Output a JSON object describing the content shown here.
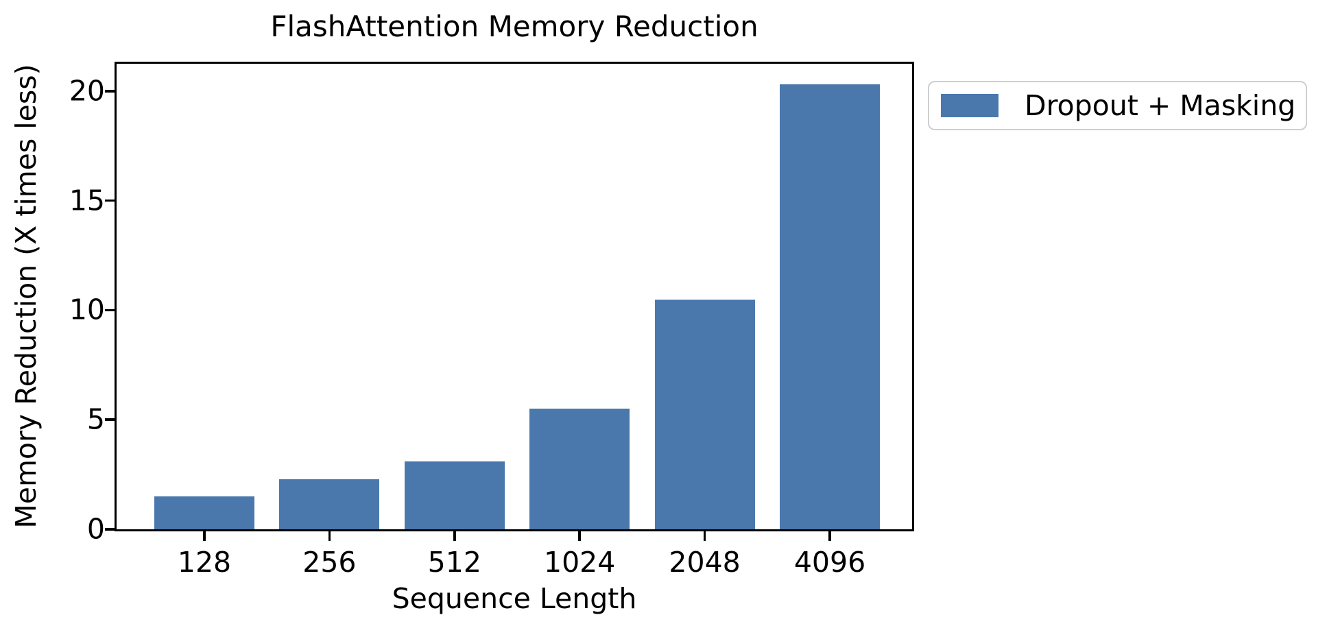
{
  "chart_data": {
    "type": "bar",
    "title": "FlashAttention Memory Reduction",
    "xlabel": "Sequence Length",
    "ylabel": "Memory Reduction (X times less)",
    "categories": [
      "128",
      "256",
      "512",
      "1024",
      "2048",
      "4096"
    ],
    "values": [
      1.5,
      2.3,
      3.1,
      5.5,
      10.5,
      20.3
    ],
    "series": [
      {
        "name": "Dropout + Masking",
        "values": [
          1.5,
          2.3,
          3.1,
          5.5,
          10.5,
          20.3
        ]
      }
    ],
    "yticks": [
      0,
      5,
      10,
      15,
      20
    ],
    "ylim": [
      0,
      21.25
    ],
    "grid": false,
    "legend_position": "outside-upper-right",
    "bar_color": "#4a78ad"
  },
  "legend": {
    "label": "Dropout + Masking"
  },
  "colors": {
    "bar": "#4a78ad",
    "axis": "#000000",
    "legend_border": "#cfcfcf",
    "background": "#ffffff"
  }
}
